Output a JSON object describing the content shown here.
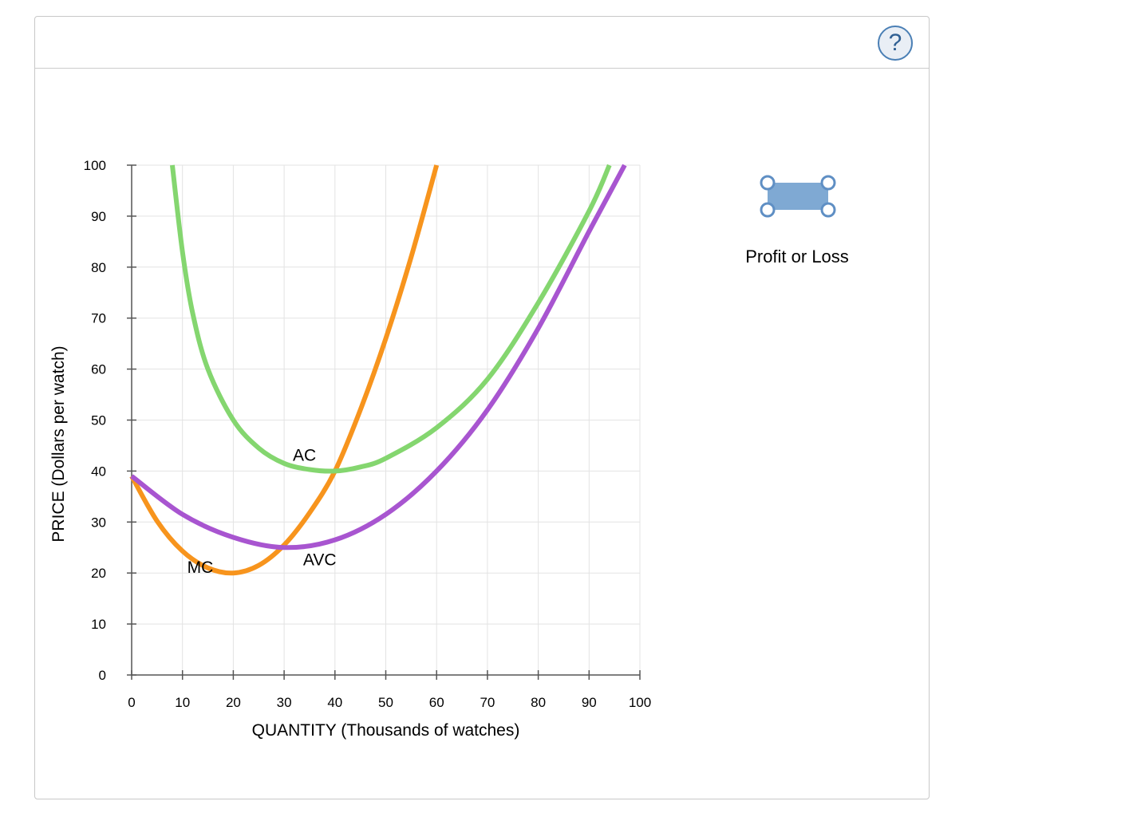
{
  "toolbar": {
    "help_label": "?"
  },
  "tools": {
    "profit_or_loss_label": "Profit or Loss",
    "profit_or_loss_color": "#7fa9d3",
    "handle_color": "#5f8fc4"
  },
  "chart_data": {
    "type": "line",
    "xlabel": "QUANTITY (Thousands of watches)",
    "ylabel": "PRICE (Dollars per watch)",
    "xlim": [
      0,
      100
    ],
    "ylim": [
      0,
      100
    ],
    "xticks": [
      "0",
      "10",
      "20",
      "30",
      "40",
      "50",
      "60",
      "70",
      "80",
      "90",
      "100"
    ],
    "yticks": [
      "0",
      "10",
      "20",
      "30",
      "40",
      "50",
      "60",
      "70",
      "80",
      "90",
      "100"
    ],
    "grid": true,
    "series": [
      {
        "name": "MC",
        "color": "#f7941d",
        "x": [
          0,
          5,
          10,
          15,
          20,
          25,
          30,
          35,
          40,
          45,
          50,
          55,
          60
        ],
        "y": [
          39,
          30.2,
          24.3,
          21,
          20,
          21.5,
          25.5,
          31.8,
          40,
          52,
          66,
          82,
          100
        ]
      },
      {
        "name": "AVC",
        "color": "#a855d0",
        "x": [
          0,
          10,
          20,
          30,
          40,
          50,
          60,
          70,
          80,
          90,
          97
        ],
        "y": [
          39,
          31.5,
          27,
          25,
          26.5,
          31.5,
          40,
          52,
          68,
          87,
          100
        ]
      },
      {
        "name": "AC",
        "color": "#84d66f",
        "x": [
          8,
          10,
          12,
          15,
          20,
          25,
          30,
          35,
          40,
          45,
          50,
          60,
          70,
          80,
          90,
          94
        ],
        "y": [
          100,
          83,
          71,
          60,
          50,
          44.5,
          41.5,
          40.3,
          40,
          40.8,
          42.5,
          48.5,
          58,
          73,
          91,
          100
        ]
      }
    ],
    "annotations": [
      {
        "text": "MC",
        "x": 13.5,
        "y": 20
      },
      {
        "text": "AC",
        "x": 34,
        "y": 42
      },
      {
        "text": "AVC",
        "x": 37,
        "y": 21.5
      }
    ]
  }
}
